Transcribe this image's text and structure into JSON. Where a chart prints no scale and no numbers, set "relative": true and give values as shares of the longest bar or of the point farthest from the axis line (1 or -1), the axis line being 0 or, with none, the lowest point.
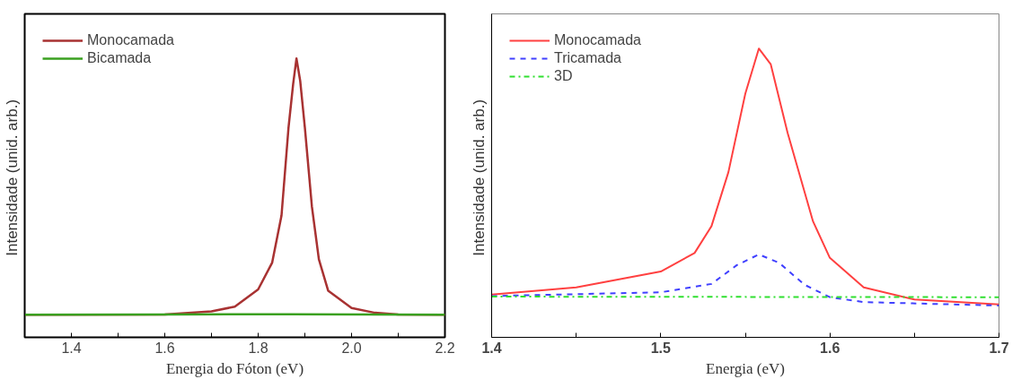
{
  "chart_data": [
    {
      "type": "line",
      "relative": true,
      "xlabel": "Energia do Fóton (eV)",
      "ylabel": "Intensidade  (unid. arb.)",
      "xlim": [
        1.3,
        2.2
      ],
      "xticks": [
        {
          "value": 1.3,
          "label": null
        },
        1.4,
        {
          "value": 1.5,
          "label": null
        },
        1.6,
        {
          "value": 1.7,
          "label": null
        },
        1.8,
        {
          "value": 1.9,
          "label": null
        },
        {
          "value": 2.0,
          "label": "2.0"
        },
        {
          "value": 2.1,
          "label": null
        },
        2.2
      ],
      "grid": false,
      "legend": "top left",
      "line_style": "solid",
      "series": [
        {
          "name": "Monocamada",
          "color": "#a83232",
          "x": [
            1.3,
            1.6,
            1.7,
            1.75,
            1.8,
            1.83,
            1.85,
            1.865,
            1.875,
            1.882,
            1.89,
            1.9,
            1.915,
            1.93,
            1.95,
            2.0,
            2.05,
            2.1,
            2.2
          ],
          "values": [
            0.081,
            0.082,
            0.093,
            0.11,
            0.172,
            0.268,
            0.437,
            0.752,
            0.91,
            1.0,
            0.92,
            0.752,
            0.47,
            0.28,
            0.167,
            0.105,
            0.088,
            0.082,
            0.081
          ]
        },
        {
          "name": "Bicamada",
          "color": "#3aa020",
          "x": [
            1.3,
            1.6,
            1.87,
            2.2
          ],
          "values": [
            0.081,
            0.082,
            0.083,
            0.081
          ]
        }
      ]
    },
    {
      "type": "line",
      "relative": true,
      "xlabel": "Energia (eV)",
      "ylabel": "Intensidade  (unid. arb.)",
      "xlim": [
        1.4,
        1.7
      ],
      "xticks": [
        1.4,
        {
          "value": 1.45,
          "label": null
        },
        1.5,
        {
          "value": 1.55,
          "label": null
        },
        1.6,
        {
          "value": 1.65,
          "label": null
        },
        1.7
      ],
      "grid": false,
      "legend": "top left",
      "series": [
        {
          "name": "Monocamada",
          "color": "#ff4040",
          "line_style": "solid",
          "x": [
            1.4,
            1.45,
            1.5,
            1.52,
            1.53,
            1.54,
            1.55,
            1.558,
            1.565,
            1.575,
            1.59,
            1.6,
            1.62,
            1.65,
            1.7
          ],
          "values": [
            0.148,
            0.173,
            0.228,
            0.292,
            0.385,
            0.572,
            0.844,
            1.0,
            0.946,
            0.708,
            0.402,
            0.275,
            0.173,
            0.131,
            0.114
          ]
        },
        {
          "name": "Tricamada",
          "color": "#4040ff",
          "line_style": "dashed",
          "x": [
            1.4,
            1.5,
            1.53,
            1.545,
            1.558,
            1.57,
            1.585,
            1.6,
            1.62,
            1.7
          ],
          "values": [
            0.143,
            0.156,
            0.185,
            0.25,
            0.287,
            0.258,
            0.182,
            0.139,
            0.122,
            0.11
          ]
        },
        {
          "name": "3D",
          "color": "#30e030",
          "line_style": "dashdot",
          "x": [
            1.4,
            1.7
          ],
          "values": [
            0.141,
            0.139
          ]
        }
      ]
    }
  ]
}
